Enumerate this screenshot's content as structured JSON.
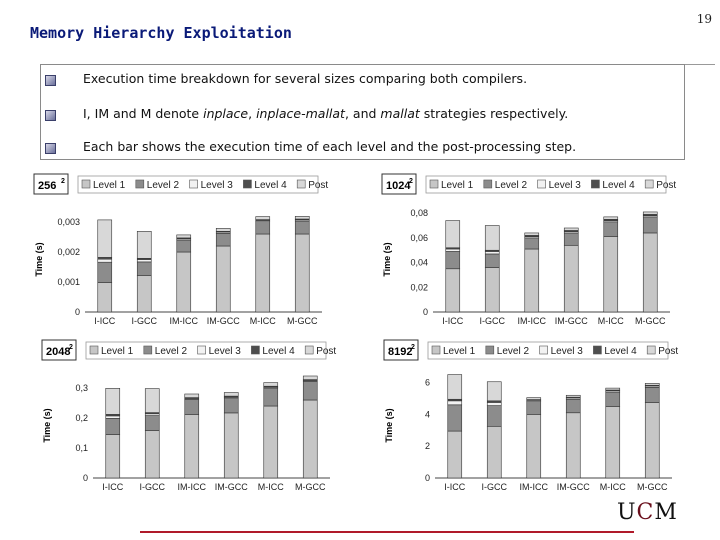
{
  "slide": {
    "title": "Memory Hierarchy Exploitation",
    "page_number": "19",
    "bullets": [
      {
        "text": "Execution time breakdown for several sizes comparing both compilers."
      },
      {
        "pre": "I, IM and M denote ",
        "a": "inplace",
        "sep1": ", ",
        "b": "inplace-mallat",
        "sep2": ", and ",
        "c": "mallat",
        "post": " strategies respectively."
      },
      {
        "text": "Each bar shows the execution time of each level and the post-processing step."
      }
    ],
    "logo": {
      "u": "U",
      "c": "C",
      "m": "M"
    }
  },
  "chart_data": [
    {
      "type": "bar",
      "stacked": true,
      "title": "256",
      "title_sup": "2",
      "ylabel": "Time (s)",
      "ylim": [
        0,
        0.0035
      ],
      "yticks": [
        "0",
        "0,001",
        "0,002",
        "0,003"
      ],
      "ytick_values": [
        0,
        0.001,
        0.002,
        0.003
      ],
      "categories": [
        "I-ICC",
        "I-GCC",
        "IM-ICC",
        "IM-GCC",
        "M-ICC",
        "M-GCC"
      ],
      "series": [
        {
          "name": "Level 1",
          "color": "#c6c6c6",
          "values": [
            0.00098,
            0.00122,
            0.002,
            0.0022,
            0.0026,
            0.0026
          ]
        },
        {
          "name": "Level 2",
          "color": "#8c8c8c",
          "values": [
            0.00068,
            0.00045,
            0.0004,
            0.00042,
            0.00041,
            0.00043
          ]
        },
        {
          "name": "Level 3",
          "color": "#f2f2f2",
          "values": [
            0.0001,
            8e-05,
            4e-05,
            4e-05,
            4e-05,
            4e-05
          ]
        },
        {
          "name": "Level 4",
          "color": "#4e4e4e",
          "values": [
            6e-05,
            4e-05,
            3e-05,
            3e-05,
            3e-05,
            3e-05
          ]
        },
        {
          "name": "Post",
          "color": "#d8d8d8",
          "values": [
            0.00125,
            0.0009,
            0.0001,
            0.0001,
            0.0001,
            9e-05
          ]
        }
      ]
    },
    {
      "type": "bar",
      "stacked": true,
      "title": "1024",
      "title_sup": "2",
      "ylabel": "Time (s)",
      "ylim": [
        0,
        0.085
      ],
      "yticks": [
        "0",
        "0,02",
        "0,04",
        "0,06",
        "0,08"
      ],
      "ytick_values": [
        0,
        0.02,
        0.04,
        0.06,
        0.08
      ],
      "categories": [
        "I-ICC",
        "I-GCC",
        "IM-ICC",
        "IM-GCC",
        "M-ICC",
        "M-GCC"
      ],
      "series": [
        {
          "name": "Level 1",
          "color": "#c6c6c6",
          "values": [
            0.035,
            0.036,
            0.051,
            0.054,
            0.061,
            0.064
          ]
        },
        {
          "name": "Level 2",
          "color": "#8c8c8c",
          "values": [
            0.014,
            0.011,
            0.009,
            0.01,
            0.012,
            0.013
          ]
        },
        {
          "name": "Level 3",
          "color": "#f2f2f2",
          "values": [
            0.002,
            0.002,
            0.001,
            0.001,
            0.001,
            0.001
          ]
        },
        {
          "name": "Level 4",
          "color": "#4e4e4e",
          "values": [
            0.001,
            0.001,
            0.001,
            0.001,
            0.001,
            0.001
          ]
        },
        {
          "name": "Post",
          "color": "#d8d8d8",
          "values": [
            0.022,
            0.02,
            0.002,
            0.002,
            0.002,
            0.002
          ]
        }
      ]
    },
    {
      "type": "bar",
      "stacked": true,
      "title": "2048",
      "title_sup": "2",
      "ylabel": "Time (s)",
      "ylim": [
        0,
        0.35
      ],
      "yticks": [
        "0",
        "0,1",
        "0,2",
        "0,3"
      ],
      "ytick_values": [
        0,
        0.1,
        0.2,
        0.3
      ],
      "categories": [
        "I-ICC",
        "I-GCC",
        "IM-ICC",
        "IM-GCC",
        "M-ICC",
        "M-GCC"
      ],
      "series": [
        {
          "name": "Level 1",
          "color": "#c6c6c6",
          "values": [
            0.145,
            0.158,
            0.212,
            0.217,
            0.24,
            0.26
          ]
        },
        {
          "name": "Level 2",
          "color": "#8c8c8c",
          "values": [
            0.054,
            0.05,
            0.05,
            0.05,
            0.06,
            0.062
          ]
        },
        {
          "name": "Level 3",
          "color": "#f2f2f2",
          "values": [
            0.008,
            0.006,
            0.003,
            0.003,
            0.003,
            0.003
          ]
        },
        {
          "name": "Level 4",
          "color": "#4e4e4e",
          "values": [
            0.005,
            0.004,
            0.003,
            0.003,
            0.003,
            0.003
          ]
        },
        {
          "name": "Post",
          "color": "#d8d8d8",
          "values": [
            0.087,
            0.08,
            0.012,
            0.012,
            0.012,
            0.012
          ]
        }
      ]
    },
    {
      "type": "bar",
      "stacked": true,
      "title": "8192",
      "title_sup": "2",
      "ylabel": "Time (s)",
      "ylim": [
        0,
        6.6
      ],
      "yticks": [
        "0",
        "2",
        "4",
        "6"
      ],
      "ytick_values": [
        0,
        2,
        4,
        6
      ],
      "categories": [
        "I-ICC",
        "I-GCC",
        "IM-ICC",
        "IM-GCC",
        "M-ICC",
        "M-GCC"
      ],
      "series": [
        {
          "name": "Level 1",
          "color": "#c6c6c6",
          "values": [
            2.95,
            3.25,
            4.0,
            4.1,
            4.5,
            4.75
          ]
        },
        {
          "name": "Level 2",
          "color": "#8c8c8c",
          "values": [
            1.65,
            1.3,
            0.8,
            0.85,
            0.9,
            0.95
          ]
        },
        {
          "name": "Level 3",
          "color": "#f2f2f2",
          "values": [
            0.25,
            0.2,
            0.08,
            0.08,
            0.08,
            0.08
          ]
        },
        {
          "name": "Level 4",
          "color": "#4e4e4e",
          "values": [
            0.1,
            0.1,
            0.05,
            0.05,
            0.05,
            0.05
          ]
        },
        {
          "name": "Post",
          "color": "#d8d8d8",
          "values": [
            1.55,
            1.2,
            0.12,
            0.12,
            0.12,
            0.12
          ]
        }
      ]
    }
  ]
}
